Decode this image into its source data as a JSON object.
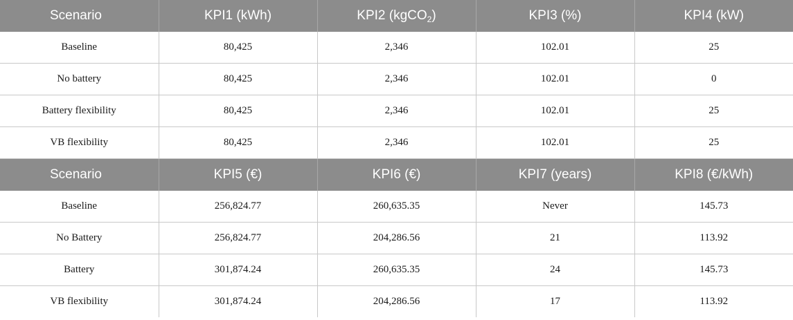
{
  "table1": {
    "headers": [
      "Scenario",
      "KPI1 (kWh)",
      "KPI2 (kgCO",
      "2",
      ")",
      "KPI3 (%)",
      "KPI4 (kW)"
    ],
    "h": {
      "scenario": "Scenario",
      "kpi1": "KPI1 (kWh)",
      "kpi2_pre": "KPI2 (kgCO",
      "kpi2_sub": "2",
      "kpi2_post": ")",
      "kpi3": "KPI3 (%)",
      "kpi4": "KPI4 (kW)"
    },
    "rows": [
      [
        "Baseline",
        "80,425",
        "2,346",
        "102.01",
        "25"
      ],
      [
        "No battery",
        "80,425",
        "2,346",
        "102.01",
        "0"
      ],
      [
        "Battery flexibility",
        "80,425",
        "2,346",
        "102.01",
        "25"
      ],
      [
        "VB flexibility",
        "80,425",
        "2,346",
        "102.01",
        "25"
      ]
    ]
  },
  "table2": {
    "h": {
      "scenario": "Scenario",
      "kpi5": "KPI5 (€)",
      "kpi6": "KPI6 (€)",
      "kpi7": "KPI7 (years)",
      "kpi8": "KPI8 (€/kWh)"
    },
    "rows": [
      [
        "Baseline",
        "256,824.77",
        "260,635.35",
        "Never",
        "145.73"
      ],
      [
        "No Battery",
        "256,824.77",
        "204,286.56",
        "21",
        "113.92"
      ],
      [
        "Battery",
        "301,874.24",
        "260,635.35",
        "24",
        "145.73"
      ],
      [
        "VB flexibility",
        "301,874.24",
        "204,286.56",
        "17",
        "113.92"
      ]
    ]
  },
  "colors": {
    "header_bg": "#8c8c8c",
    "header_text": "#ffffff",
    "grid": "#c8c8c8"
  }
}
